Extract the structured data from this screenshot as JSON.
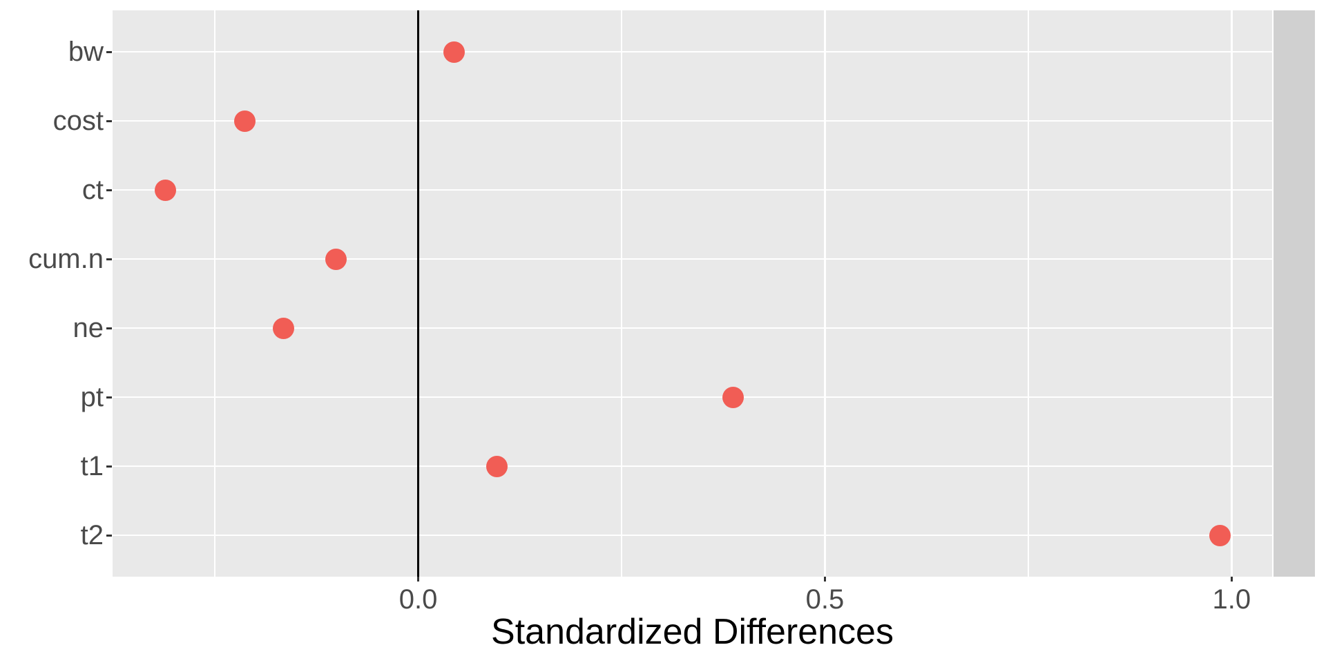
{
  "chart_data": {
    "type": "scatter",
    "subtype": "cleveland-dot-plot",
    "title": "",
    "xlabel": "Standardized Differences",
    "ylabel": "",
    "categories": [
      "bw",
      "cost",
      "ct",
      "cum.n",
      "ne",
      "pt",
      "t1",
      "t2"
    ],
    "values": [
      0.044,
      -0.213,
      -0.311,
      -0.101,
      -0.166,
      0.387,
      0.097,
      0.986
    ],
    "x_tick_labels": [
      "0.0",
      "0.5",
      "1.0"
    ],
    "x_tick_values": [
      0,
      0.5,
      1.0
    ],
    "x_minor_values": [
      -0.25,
      0.25,
      0.75
    ],
    "xlim": [
      -0.3758,
      1.0498
    ],
    "reference_line_x": 0,
    "grid": "white major and minor gridlines on gray panel",
    "legend": "none",
    "colors": {
      "point": "#F15D55",
      "panel_bg": "#E9E9E9",
      "right_strip_bg": "#D0D0D0",
      "gridline": "#FFFFFF",
      "reference_line": "#000000",
      "axis_text": "#4A4A4A",
      "axis_title": "#000000",
      "tick_mark": "#333333",
      "page_bg": "#FFFFFF"
    }
  }
}
